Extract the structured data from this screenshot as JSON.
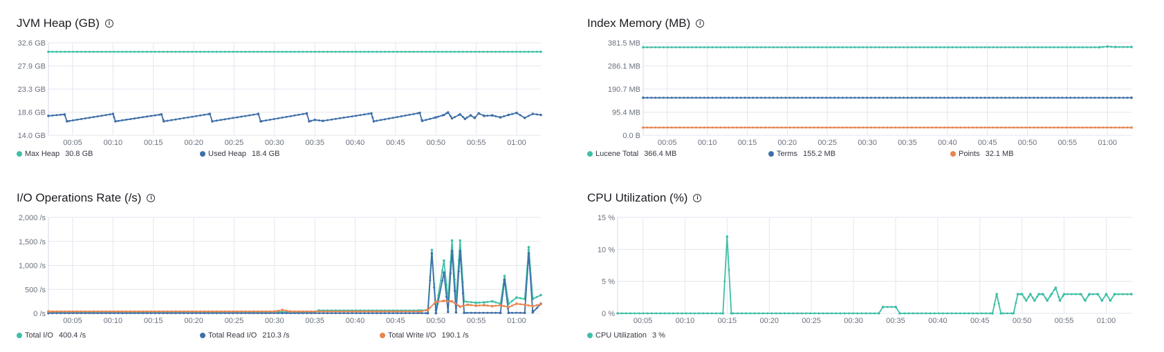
{
  "panels": [
    {
      "title": "JVM Heap (GB)",
      "legend": [
        {
          "label": "Max Heap",
          "value": "30.8 GB",
          "color": "#3ebfa6"
        },
        {
          "label": "Used Heap",
          "value": "18.4 GB",
          "color": "#3e6fa8"
        }
      ]
    },
    {
      "title": "Index Memory (MB)",
      "legend": [
        {
          "label": "Lucene Total",
          "value": "366.4 MB",
          "color": "#3ebfa6"
        },
        {
          "label": "Terms",
          "value": "155.2 MB",
          "color": "#3e6fa8"
        },
        {
          "label": "Points",
          "value": "32.1 MB",
          "color": "#e8844f"
        }
      ]
    },
    {
      "title": "I/O Operations Rate (/s)",
      "legend": [
        {
          "label": "Total I/O",
          "value": "400.4 /s",
          "color": "#3ebfa6"
        },
        {
          "label": "Total Read I/O",
          "value": "210.3 /s",
          "color": "#3e6fa8"
        },
        {
          "label": "Total Write I/O",
          "value": "190.1 /s",
          "color": "#e8844f"
        }
      ]
    },
    {
      "title": "CPU Utilization (%)",
      "legend": [
        {
          "label": "CPU Utilization",
          "value": "3 %",
          "color": "#3ebfa6"
        }
      ]
    }
  ],
  "chart_data": [
    {
      "type": "line",
      "title": "JVM Heap (GB)",
      "x_ticks": [
        "00:05",
        "00:10",
        "00:15",
        "00:20",
        "00:25",
        "00:30",
        "00:35",
        "00:40",
        "00:45",
        "00:50",
        "00:55",
        "01:00"
      ],
      "y_ticks": [
        "32.6 GB",
        "27.9 GB",
        "23.3 GB",
        "18.6 GB",
        "14.0 GB"
      ],
      "x_range_min": [
        2,
        63
      ],
      "ylim": [
        14.0,
        32.6
      ],
      "series": [
        {
          "name": "Max Heap",
          "color": "#3ebfa6",
          "points": [
            [
              2,
              30.8
            ],
            [
              63,
              30.8
            ]
          ]
        },
        {
          "name": "Used Heap",
          "color": "#3e6fa8",
          "points": [
            [
              2,
              17.9
            ],
            [
              4,
              18.2
            ],
            [
              4.3,
              16.8
            ],
            [
              10,
              18.3
            ],
            [
              10.3,
              16.8
            ],
            [
              16,
              18.2
            ],
            [
              16.3,
              16.8
            ],
            [
              22,
              18.3
            ],
            [
              22.3,
              16.8
            ],
            [
              28,
              18.3
            ],
            [
              28.3,
              16.8
            ],
            [
              34,
              18.4
            ],
            [
              34.3,
              16.8
            ],
            [
              35,
              17.1
            ],
            [
              36,
              16.9
            ],
            [
              42,
              18.4
            ],
            [
              42.3,
              16.8
            ],
            [
              48,
              18.5
            ],
            [
              48.3,
              16.9
            ],
            [
              50,
              17.6
            ],
            [
              51,
              18.1
            ],
            [
              51.5,
              18.6
            ],
            [
              52,
              17.4
            ],
            [
              53,
              18.2
            ],
            [
              53.6,
              17.3
            ],
            [
              54.3,
              18.0
            ],
            [
              54.8,
              17.5
            ],
            [
              55.3,
              18.4
            ],
            [
              56,
              17.9
            ],
            [
              57,
              18.0
            ],
            [
              58,
              17.6
            ],
            [
              59,
              18.1
            ],
            [
              60,
              18.5
            ],
            [
              61,
              17.5
            ],
            [
              62,
              18.3
            ],
            [
              63,
              18.1
            ]
          ]
        }
      ]
    },
    {
      "type": "line",
      "title": "Index Memory (MB)",
      "x_ticks": [
        "00:05",
        "00:10",
        "00:15",
        "00:20",
        "00:25",
        "00:30",
        "00:35",
        "00:40",
        "00:45",
        "00:50",
        "00:55",
        "01:00"
      ],
      "y_ticks": [
        "381.5 MB",
        "286.1 MB",
        "190.7 MB",
        "95.4 MB",
        "0.0 B"
      ],
      "x_range_min": [
        2,
        63
      ],
      "ylim": [
        0,
        381.5
      ],
      "series": [
        {
          "name": "Lucene Total",
          "color": "#3ebfa6",
          "points": [
            [
              2,
              363
            ],
            [
              59,
              363
            ],
            [
              60,
              366
            ],
            [
              61,
              364
            ],
            [
              63,
              364
            ]
          ]
        },
        {
          "name": "Terms",
          "color": "#3e6fa8",
          "points": [
            [
              2,
              155
            ],
            [
              63,
              155
            ]
          ]
        },
        {
          "name": "Points",
          "color": "#e8844f",
          "points": [
            [
              2,
              32
            ],
            [
              63,
              32
            ]
          ]
        }
      ]
    },
    {
      "type": "line",
      "title": "I/O Operations Rate (/s)",
      "x_ticks": [
        "00:05",
        "00:10",
        "00:15",
        "00:20",
        "00:25",
        "00:30",
        "00:35",
        "00:40",
        "00:45",
        "00:50",
        "00:55",
        "01:00"
      ],
      "y_ticks": [
        "2,000 /s",
        "1,500 /s",
        "1,000 /s",
        "500 /s",
        "0 /s"
      ],
      "x_range_min": [
        2,
        63
      ],
      "ylim": [
        0,
        2000
      ],
      "series": [
        {
          "name": "Total I/O",
          "color": "#3ebfa6",
          "points": [
            [
              2,
              30
            ],
            [
              35,
              30
            ],
            [
              35.5,
              60
            ],
            [
              48,
              60
            ],
            [
              49,
              70
            ],
            [
              49.5,
              1320
            ],
            [
              50,
              70
            ],
            [
              51,
              1100
            ],
            [
              51.5,
              280
            ],
            [
              52,
              1520
            ],
            [
              52.5,
              270
            ],
            [
              53,
              1520
            ],
            [
              53.5,
              250
            ],
            [
              55,
              220
            ],
            [
              56,
              230
            ],
            [
              57,
              250
            ],
            [
              58,
              200
            ],
            [
              58.5,
              780
            ],
            [
              59,
              200
            ],
            [
              60,
              330
            ],
            [
              61,
              300
            ],
            [
              61.5,
              1380
            ],
            [
              62,
              300
            ],
            [
              63,
              380
            ]
          ]
        },
        {
          "name": "Total Read I/O",
          "color": "#3e6fa8",
          "points": [
            [
              2,
              5
            ],
            [
              49,
              5
            ],
            [
              49.5,
              1250
            ],
            [
              50,
              5
            ],
            [
              51,
              850
            ],
            [
              51.5,
              30
            ],
            [
              52,
              1300
            ],
            [
              52.5,
              20
            ],
            [
              53,
              1300
            ],
            [
              53.5,
              10
            ],
            [
              58,
              10
            ],
            [
              58.5,
              700
            ],
            [
              59,
              10
            ],
            [
              61,
              10
            ],
            [
              61.5,
              1250
            ],
            [
              62,
              20
            ],
            [
              63,
              200
            ]
          ]
        },
        {
          "name": "Total Write I/O",
          "color": "#e8844f",
          "points": [
            [
              2,
              40
            ],
            [
              30,
              40
            ],
            [
              31,
              70
            ],
            [
              32,
              40
            ],
            [
              48,
              40
            ],
            [
              49,
              70
            ],
            [
              50,
              240
            ],
            [
              51,
              260
            ],
            [
              52,
              250
            ],
            [
              53,
              140
            ],
            [
              54,
              180
            ],
            [
              55,
              160
            ],
            [
              56,
              170
            ],
            [
              57,
              150
            ],
            [
              58,
              170
            ],
            [
              59,
              130
            ],
            [
              60,
              200
            ],
            [
              61,
              180
            ],
            [
              62,
              150
            ],
            [
              63,
              190
            ]
          ]
        }
      ]
    },
    {
      "type": "line",
      "title": "CPU Utilization (%)",
      "x_ticks": [
        "00:05",
        "00:10",
        "00:15",
        "00:20",
        "00:25",
        "00:30",
        "00:35",
        "00:40",
        "00:45",
        "00:50",
        "00:55",
        "01:00"
      ],
      "y_ticks": [
        "15 %",
        "10 %",
        "5 %",
        "0 %"
      ],
      "x_range_min": [
        2,
        63
      ],
      "ylim": [
        0,
        15
      ],
      "series": [
        {
          "name": "CPU Utilization",
          "color": "#3ebfa6",
          "points": [
            [
              2,
              0
            ],
            [
              14.5,
              0
            ],
            [
              15,
              12
            ],
            [
              15.5,
              0
            ],
            [
              33,
              0
            ],
            [
              33.5,
              1
            ],
            [
              35,
              1
            ],
            [
              35.5,
              0
            ],
            [
              46.5,
              0
            ],
            [
              47,
              3
            ],
            [
              47.5,
              0
            ],
            [
              49,
              0
            ],
            [
              49.5,
              3
            ],
            [
              50,
              3
            ],
            [
              50.5,
              2
            ],
            [
              51,
              3
            ],
            [
              51.5,
              2
            ],
            [
              52,
              3
            ],
            [
              52.5,
              3
            ],
            [
              53,
              2
            ],
            [
              53.5,
              3
            ],
            [
              54,
              4
            ],
            [
              54.5,
              2
            ],
            [
              55,
              3
            ],
            [
              57,
              3
            ],
            [
              57.5,
              2
            ],
            [
              58,
              3
            ],
            [
              59,
              3
            ],
            [
              59.5,
              2
            ],
            [
              60,
              3
            ],
            [
              60.5,
              2
            ],
            [
              61,
              3
            ],
            [
              63,
              3
            ]
          ]
        }
      ]
    }
  ]
}
